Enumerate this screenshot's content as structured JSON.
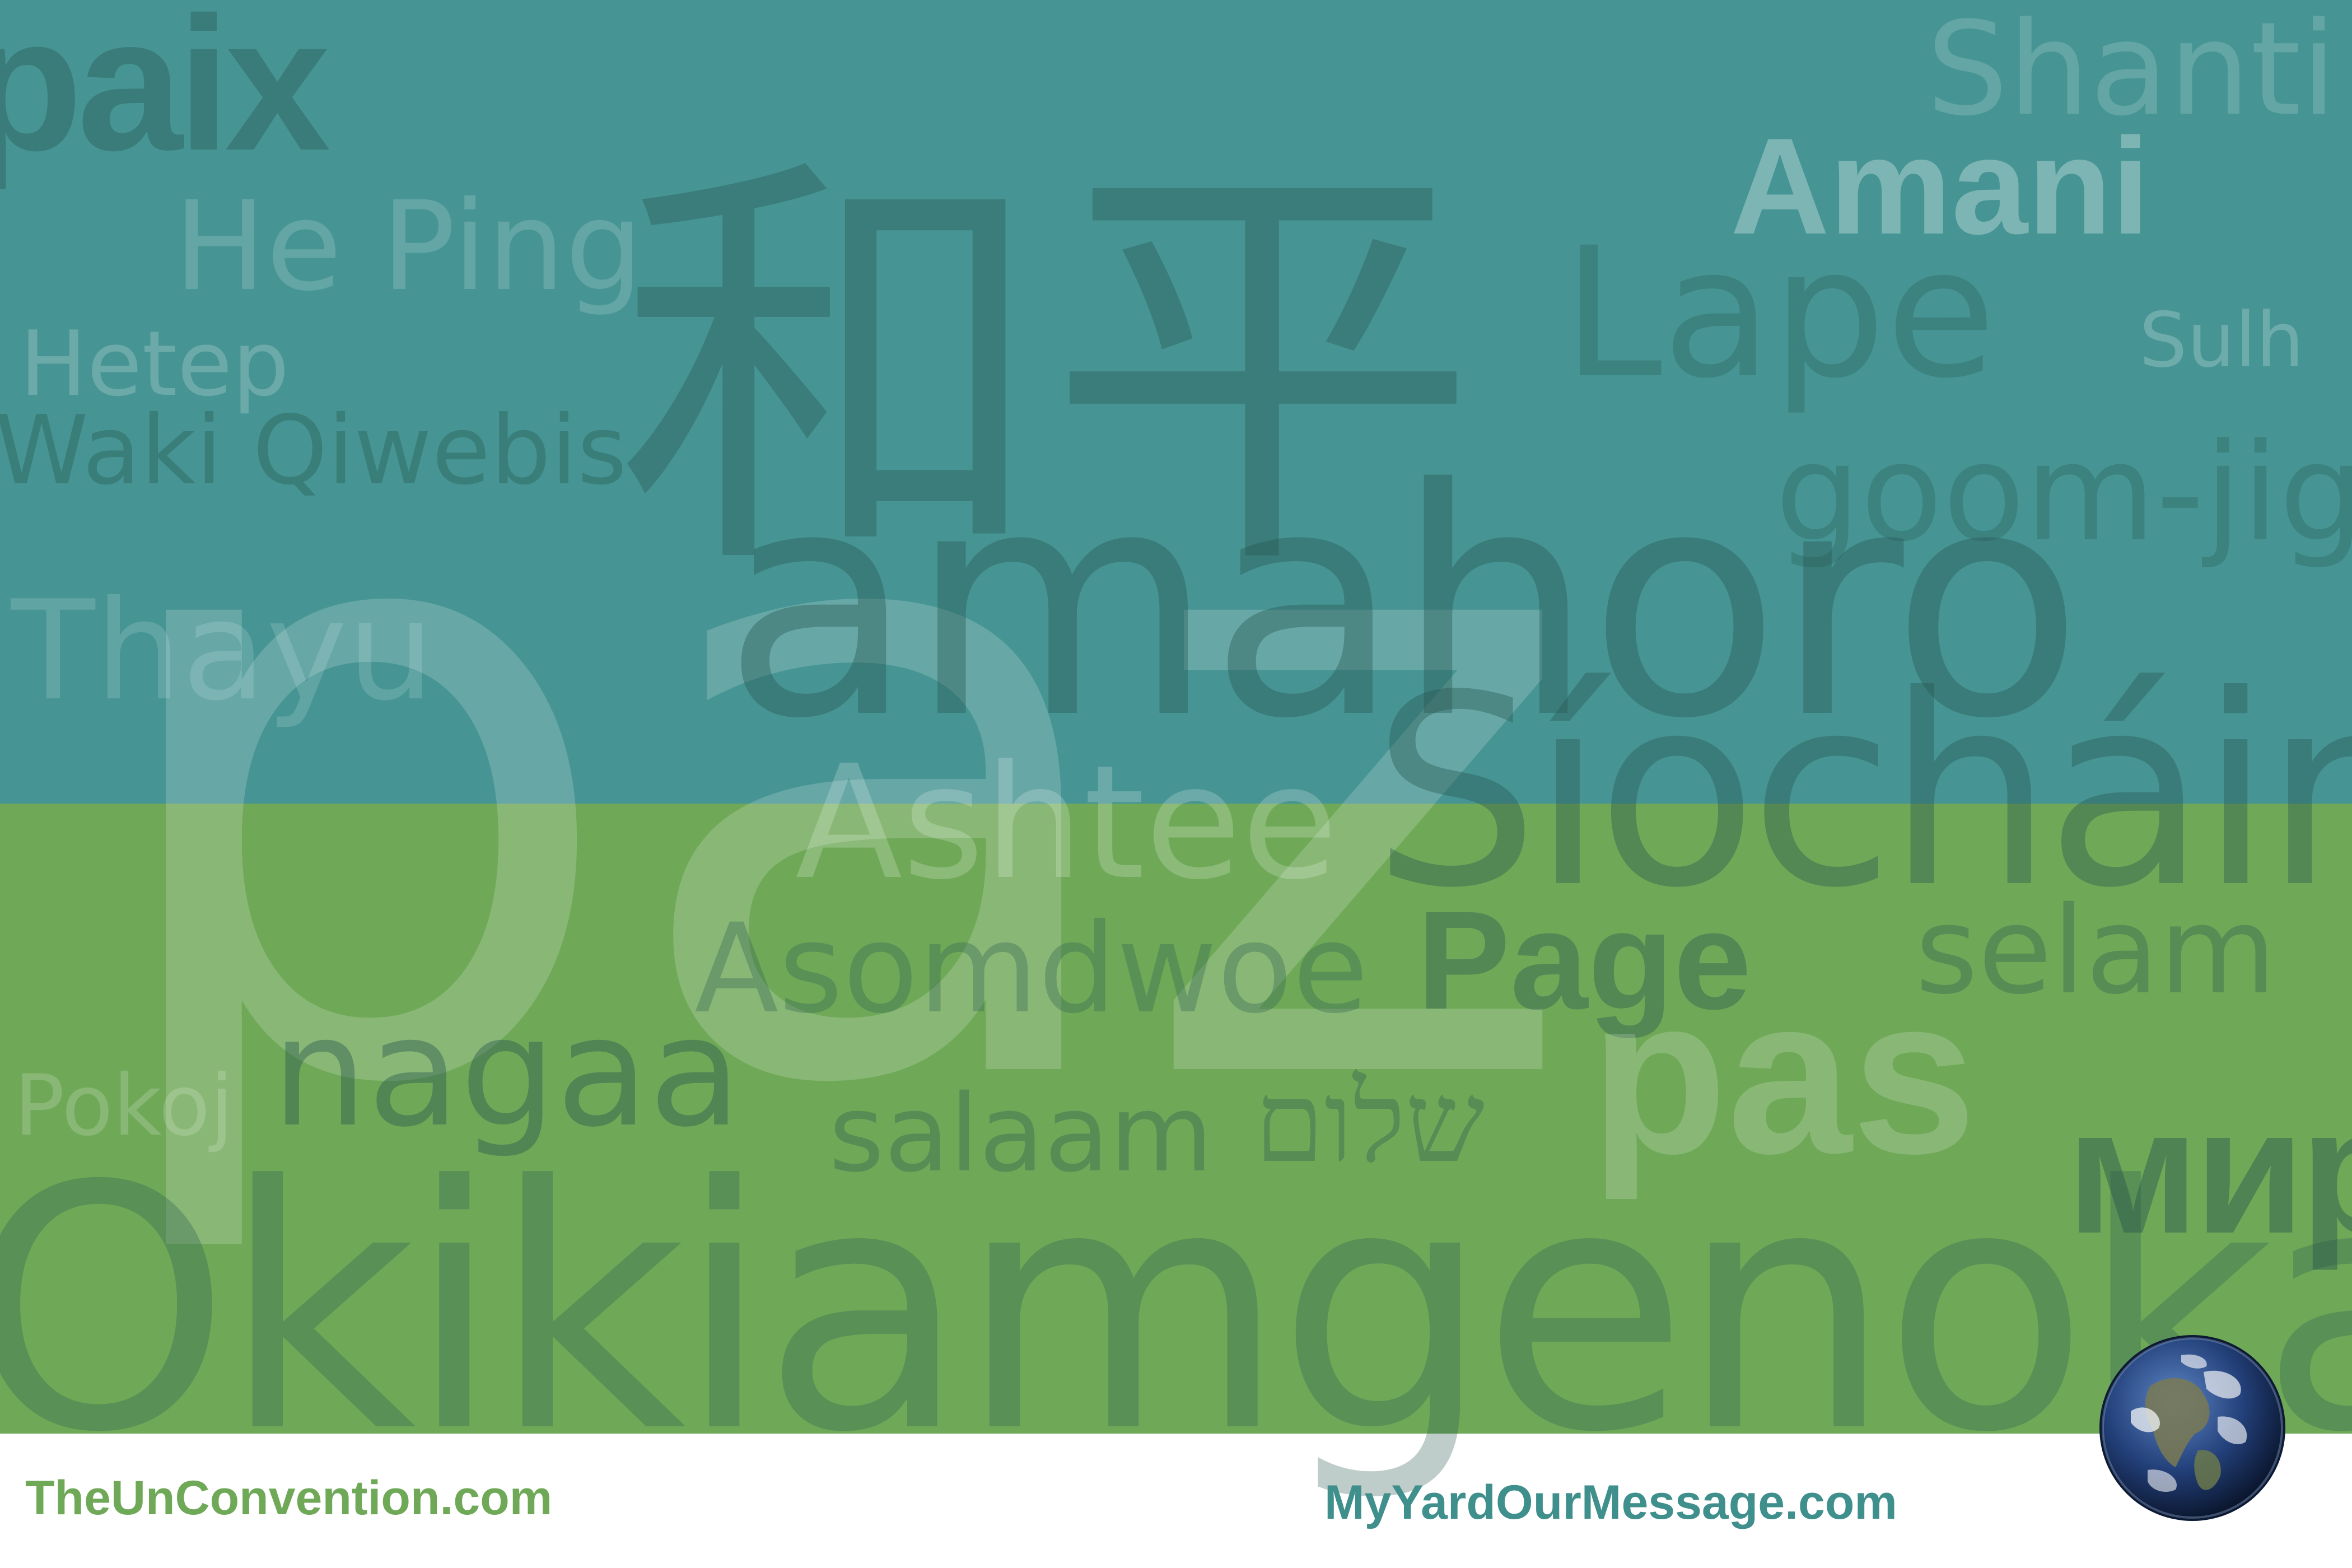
{
  "words": {
    "paix": "paix",
    "he_ping": "He Ping",
    "shanti": "Shanti",
    "amani": "Amani",
    "hetep": "Hetep",
    "chinese": "和平",
    "lape": "Lape",
    "sulh": "Sulh",
    "waki_qiwebis": "Waki Qiwebis",
    "goom_jigi": "goom-jigi",
    "thayu": "Thayu",
    "paz": "paz",
    "amahoro": "amahoro",
    "siochain": "Síocháin",
    "ashtee": "Ashtee",
    "asomdwoe": "Asomdwoe",
    "page": "Page",
    "selam": "selam",
    "nagaa": "nagaa",
    "pokoj": "Pokoj",
    "salaam": "salaam",
    "shalom": "שלום",
    "pas": "pas",
    "mir": "мир",
    "okikiamgenoka": "Okikiamgenoka"
  },
  "footer": {
    "left_link": "TheUnConvention.com",
    "right_link": "MyYardOurMessage.com"
  },
  "colors": {
    "teal_band": "#469594",
    "green_band": "#6fa958",
    "left_link": "#6fa958",
    "right_link": "#3f8f8c"
  },
  "icons": {
    "earth": "earth-globe-icon"
  }
}
